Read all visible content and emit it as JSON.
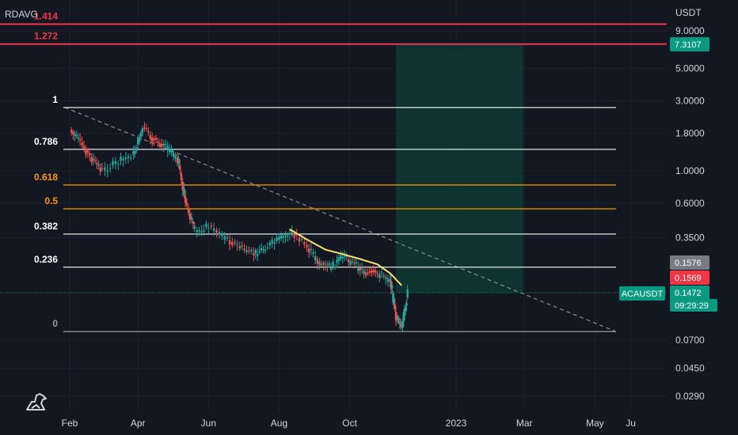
{
  "chart_data": {
    "type": "line",
    "symbol_label": "ACAUSDT",
    "overlay_label": "RDAVG",
    "currency_label": "USDT",
    "price_scale": "log",
    "y_ticks": [
      "9.0000",
      "5.0000",
      "3.0000",
      "1.8000",
      "1.0000",
      "0.6000",
      "0.3500",
      "0.0700",
      "0.0450",
      "0.0290"
    ],
    "x_ticks": [
      "Feb",
      "Apr",
      "Jun",
      "Aug",
      "Oct",
      "2023",
      "Mar",
      "May",
      "Ju"
    ],
    "fib_levels": [
      {
        "label": "1.414",
        "value": 10.0,
        "color": "#f23645"
      },
      {
        "label": "1.272",
        "value": 7.3107,
        "color": "#f23645"
      },
      {
        "label": "1",
        "value": 2.7,
        "color": "#ffffff"
      },
      {
        "label": "0.786",
        "value": 1.4,
        "color": "#ffffff"
      },
      {
        "label": "0.618",
        "value": 0.8,
        "color": "#ff9800"
      },
      {
        "label": "0.5",
        "value": 0.55,
        "color": "#ff9800"
      },
      {
        "label": "0.382",
        "value": 0.37,
        "color": "#ffffff"
      },
      {
        "label": "0.236",
        "value": 0.22,
        "color": "#ffffff"
      },
      {
        "label": "0",
        "value": 0.08,
        "color": "#9598a1"
      }
    ],
    "price_badges": [
      {
        "value": "7.3107",
        "color": "#089981"
      },
      {
        "value": "0.1576",
        "color": "#787b86"
      },
      {
        "value": "0.1569",
        "color": "#f23645"
      },
      {
        "value": "0.1472",
        "color": "#089981"
      }
    ],
    "countdown": "09:29:29",
    "series": [
      {
        "name": "ACAUSDT",
        "x": [
          "2022-02-01",
          "2022-02-10",
          "2022-02-20",
          "2022-03-01",
          "2022-03-15",
          "2022-03-28",
          "2022-04-05",
          "2022-04-15",
          "2022-04-25",
          "2022-05-05",
          "2022-05-12",
          "2022-05-20",
          "2022-06-01",
          "2022-06-15",
          "2022-06-28",
          "2022-07-10",
          "2022-07-20",
          "2022-08-01",
          "2022-08-12",
          "2022-08-25",
          "2022-09-05",
          "2022-09-15",
          "2022-09-25",
          "2022-10-05",
          "2022-10-15",
          "2022-10-25",
          "2022-11-05",
          "2022-11-10",
          "2022-11-15",
          "2022-11-20"
        ],
        "values": [
          1.9,
          1.55,
          1.2,
          1.0,
          1.15,
          1.3,
          1.95,
          1.6,
          1.5,
          1.2,
          0.6,
          0.38,
          0.42,
          0.35,
          0.3,
          0.27,
          0.3,
          0.34,
          0.38,
          0.3,
          0.23,
          0.22,
          0.26,
          0.23,
          0.2,
          0.2,
          0.18,
          0.1,
          0.085,
          0.1472
        ]
      }
    ]
  }
}
